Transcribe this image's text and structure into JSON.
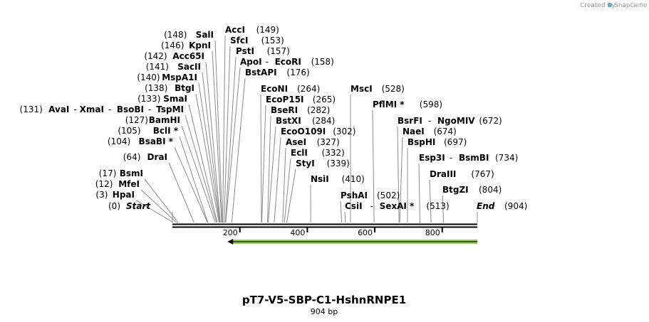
{
  "credit": {
    "prefix": "Created by",
    "brand": "SnapGene"
  },
  "plasmid": {
    "name": "pT7-V5-SBP-C1-HshnRNPE1",
    "length_label": "904 bp",
    "length_bp": 904
  },
  "axis": {
    "ticks": [
      {
        "bp": 200,
        "label": "200"
      },
      {
        "bp": 400,
        "label": "400"
      },
      {
        "bp": 600,
        "label": "600"
      },
      {
        "bp": 800,
        "label": "800"
      }
    ]
  },
  "feature": {
    "name": "orf-arrow",
    "start_bp": 163,
    "end_bp": 904,
    "direction": "reverse",
    "color": "#8fd14f"
  },
  "sites": [
    {
      "id": "start",
      "kind": "end",
      "pos": 0,
      "pos_text": "(0)",
      "names": [
        "Start"
      ]
    },
    {
      "id": "hpai",
      "kind": "left",
      "pos": 3,
      "pos_text": "(3)",
      "names": [
        "HpaI"
      ]
    },
    {
      "id": "mfei",
      "kind": "left",
      "pos": 12,
      "pos_text": "(12)",
      "names": [
        "MfeI"
      ]
    },
    {
      "id": "bsmi",
      "kind": "left",
      "pos": 17,
      "pos_text": "(17)",
      "names": [
        "BsmI"
      ]
    },
    {
      "id": "drai",
      "kind": "left",
      "pos": 64,
      "pos_text": "(64)",
      "names": [
        "DraI"
      ]
    },
    {
      "id": "bsabi",
      "kind": "left",
      "pos": 104,
      "pos_text": "(104)",
      "names": [
        "BsaBI *"
      ]
    },
    {
      "id": "bcli",
      "kind": "left",
      "pos": 105,
      "pos_text": "(105)",
      "names": [
        "BclI *"
      ]
    },
    {
      "id": "bamhi",
      "kind": "left",
      "pos": 127,
      "pos_text": "(127)",
      "names": [
        "BamHI"
      ]
    },
    {
      "id": "avai",
      "kind": "left",
      "pos": 131,
      "pos_text": "(131)",
      "names": [
        "AvaI",
        "XmaI",
        "BsoBI",
        "TspMI"
      ]
    },
    {
      "id": "smai",
      "kind": "left",
      "pos": 133,
      "pos_text": "(133)",
      "names": [
        "SmaI"
      ]
    },
    {
      "id": "btgi",
      "kind": "left",
      "pos": 138,
      "pos_text": "(138)",
      "names": [
        "BtgI"
      ]
    },
    {
      "id": "mspa1i",
      "kind": "left",
      "pos": 140,
      "pos_text": "(140)",
      "names": [
        "MspA1I"
      ]
    },
    {
      "id": "sacii",
      "kind": "left",
      "pos": 141,
      "pos_text": "(141)",
      "names": [
        "SacII"
      ]
    },
    {
      "id": "acc65i",
      "kind": "left",
      "pos": 142,
      "pos_text": "(142)",
      "names": [
        "Acc65I"
      ]
    },
    {
      "id": "kpni",
      "kind": "left",
      "pos": 146,
      "pos_text": "(146)",
      "names": [
        "KpnI"
      ]
    },
    {
      "id": "sali",
      "kind": "left",
      "pos": 148,
      "pos_text": "(148)",
      "names": [
        "SalI"
      ]
    },
    {
      "id": "acci",
      "kind": "right",
      "pos": 149,
      "pos_text": "(149)",
      "names": [
        "AccI"
      ]
    },
    {
      "id": "sfci",
      "kind": "right",
      "pos": 153,
      "pos_text": "(153)",
      "names": [
        "SfcI"
      ]
    },
    {
      "id": "psti",
      "kind": "right",
      "pos": 157,
      "pos_text": "(157)",
      "names": [
        "PstI"
      ]
    },
    {
      "id": "apoi",
      "kind": "right",
      "pos": 158,
      "pos_text": "(158)",
      "names": [
        "ApoI",
        "EcoRI"
      ]
    },
    {
      "id": "bstapi",
      "kind": "right",
      "pos": 176,
      "pos_text": "(176)",
      "names": [
        "BstAPI"
      ]
    },
    {
      "id": "econi",
      "kind": "right",
      "pos": 264,
      "pos_text": "(264)",
      "names": [
        "EcoNI"
      ]
    },
    {
      "id": "ecop15i",
      "kind": "right",
      "pos": 265,
      "pos_text": "(265)",
      "names": [
        "EcoP15I"
      ]
    },
    {
      "id": "bseri",
      "kind": "right",
      "pos": 282,
      "pos_text": "(282)",
      "names": [
        "BseRI"
      ]
    },
    {
      "id": "bstxi",
      "kind": "right",
      "pos": 284,
      "pos_text": "(284)",
      "names": [
        "BstXI"
      ]
    },
    {
      "id": "ecoo109i",
      "kind": "right",
      "pos": 302,
      "pos_text": "(302)",
      "names": [
        "EcoO109I"
      ]
    },
    {
      "id": "asei",
      "kind": "right",
      "pos": 327,
      "pos_text": "(327)",
      "names": [
        "AseI"
      ]
    },
    {
      "id": "ecli",
      "kind": "right",
      "pos": 332,
      "pos_text": "(332)",
      "names": [
        "EclI"
      ]
    },
    {
      "id": "styi",
      "kind": "right",
      "pos": 339,
      "pos_text": "(339)",
      "names": [
        "StyI"
      ]
    },
    {
      "id": "nsii",
      "kind": "right",
      "pos": 410,
      "pos_text": "(410)",
      "names": [
        "NsiI"
      ]
    },
    {
      "id": "pshai",
      "kind": "right",
      "pos": 502,
      "pos_text": "(502)",
      "names": [
        "PshAI"
      ]
    },
    {
      "id": "csii",
      "kind": "right",
      "pos": 513,
      "pos_text": "(513)",
      "names": [
        "CsiI",
        "SexAI *"
      ]
    },
    {
      "id": "msci",
      "kind": "right",
      "pos": 528,
      "pos_text": "(528)",
      "names": [
        "MscI"
      ]
    },
    {
      "id": "pflmi",
      "kind": "right",
      "pos": 598,
      "pos_text": "(598)",
      "names": [
        "PflMI *"
      ]
    },
    {
      "id": "bsrfi",
      "kind": "right",
      "pos": 672,
      "pos_text": "(672)",
      "names": [
        "BsrFI",
        "NgoMIV"
      ]
    },
    {
      "id": "naei",
      "kind": "right",
      "pos": 674,
      "pos_text": "(674)",
      "names": [
        "NaeI"
      ]
    },
    {
      "id": "bsphi",
      "kind": "right",
      "pos": 697,
      "pos_text": "(697)",
      "names": [
        "BspHI"
      ]
    },
    {
      "id": "esp3i",
      "kind": "right",
      "pos": 734,
      "pos_text": "(734)",
      "names": [
        "Esp3I",
        "BsmBI"
      ]
    },
    {
      "id": "draiii",
      "kind": "right",
      "pos": 767,
      "pos_text": "(767)",
      "names": [
        "DraIII"
      ]
    },
    {
      "id": "btgzi",
      "kind": "right",
      "pos": 804,
      "pos_text": "(804)",
      "names": [
        "BtgZI"
      ]
    },
    {
      "id": "end",
      "kind": "end",
      "pos": 904,
      "pos_text": "(904)",
      "names": [
        "End"
      ]
    }
  ]
}
